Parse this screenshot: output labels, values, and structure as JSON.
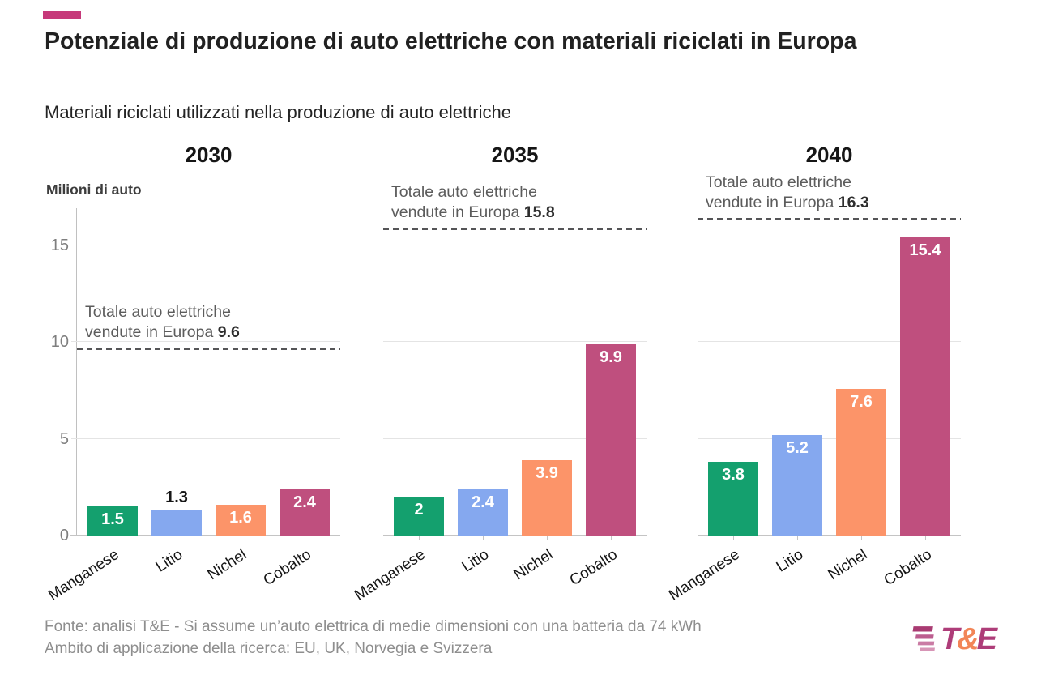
{
  "header": {
    "accent_color": "#c6397a",
    "title": "Potenziale di produzione di auto elettriche con materiali riciclati in Europa",
    "subtitle": "Materiali riciclati utilizzati nella produzione di auto elettriche"
  },
  "chart_data": {
    "type": "bar",
    "title": "Potenziale di produzione di auto elettriche con materiali riciclati in Europa",
    "subtitle": "Materiali riciclati utilizzati nella produzione di auto elettriche",
    "ylabel": "Milioni di auto",
    "unit_label": "Milioni di auto",
    "categories": [
      "Manganese",
      "Litio",
      "Nichel",
      "Cobalto"
    ],
    "colors": [
      "#14a06e",
      "#85a8ef",
      "#fc9469",
      "#bf4f7e"
    ],
    "yticks": [
      0,
      5,
      10,
      15
    ],
    "ylim": [
      0,
      17.6
    ],
    "grid": true,
    "legend": false,
    "annotation_line1": "Totale auto elettriche",
    "annotation_line2": "vendute in Europa",
    "panels": [
      {
        "year": "2030",
        "values": [
          1.5,
          1.3,
          1.6,
          2.4
        ],
        "labels": [
          "1.5",
          "1.3",
          "1.6",
          "2.4"
        ],
        "total": 9.6,
        "total_label": "9.6"
      },
      {
        "year": "2035",
        "values": [
          2,
          2.4,
          3.9,
          9.9
        ],
        "labels": [
          "2",
          "2.4",
          "3.9",
          "9.9"
        ],
        "total": 15.8,
        "total_label": "15.8"
      },
      {
        "year": "2040",
        "values": [
          3.8,
          5.2,
          7.6,
          15.4
        ],
        "labels": [
          "3.8",
          "5.2",
          "7.6",
          "15.4"
        ],
        "total": 16.3,
        "total_label": "16.3"
      }
    ]
  },
  "footer": {
    "source_line1": "Fonte: analisi T&E - Si assume un’auto elettrica di medie dimensioni con una batteria da 74 kWh",
    "source_line2": "Ambito di applicazione della ricerca: EU, UK, Norvegia e Svizzera",
    "logo": {
      "t": "T",
      "amp": "&",
      "e": "E"
    }
  }
}
